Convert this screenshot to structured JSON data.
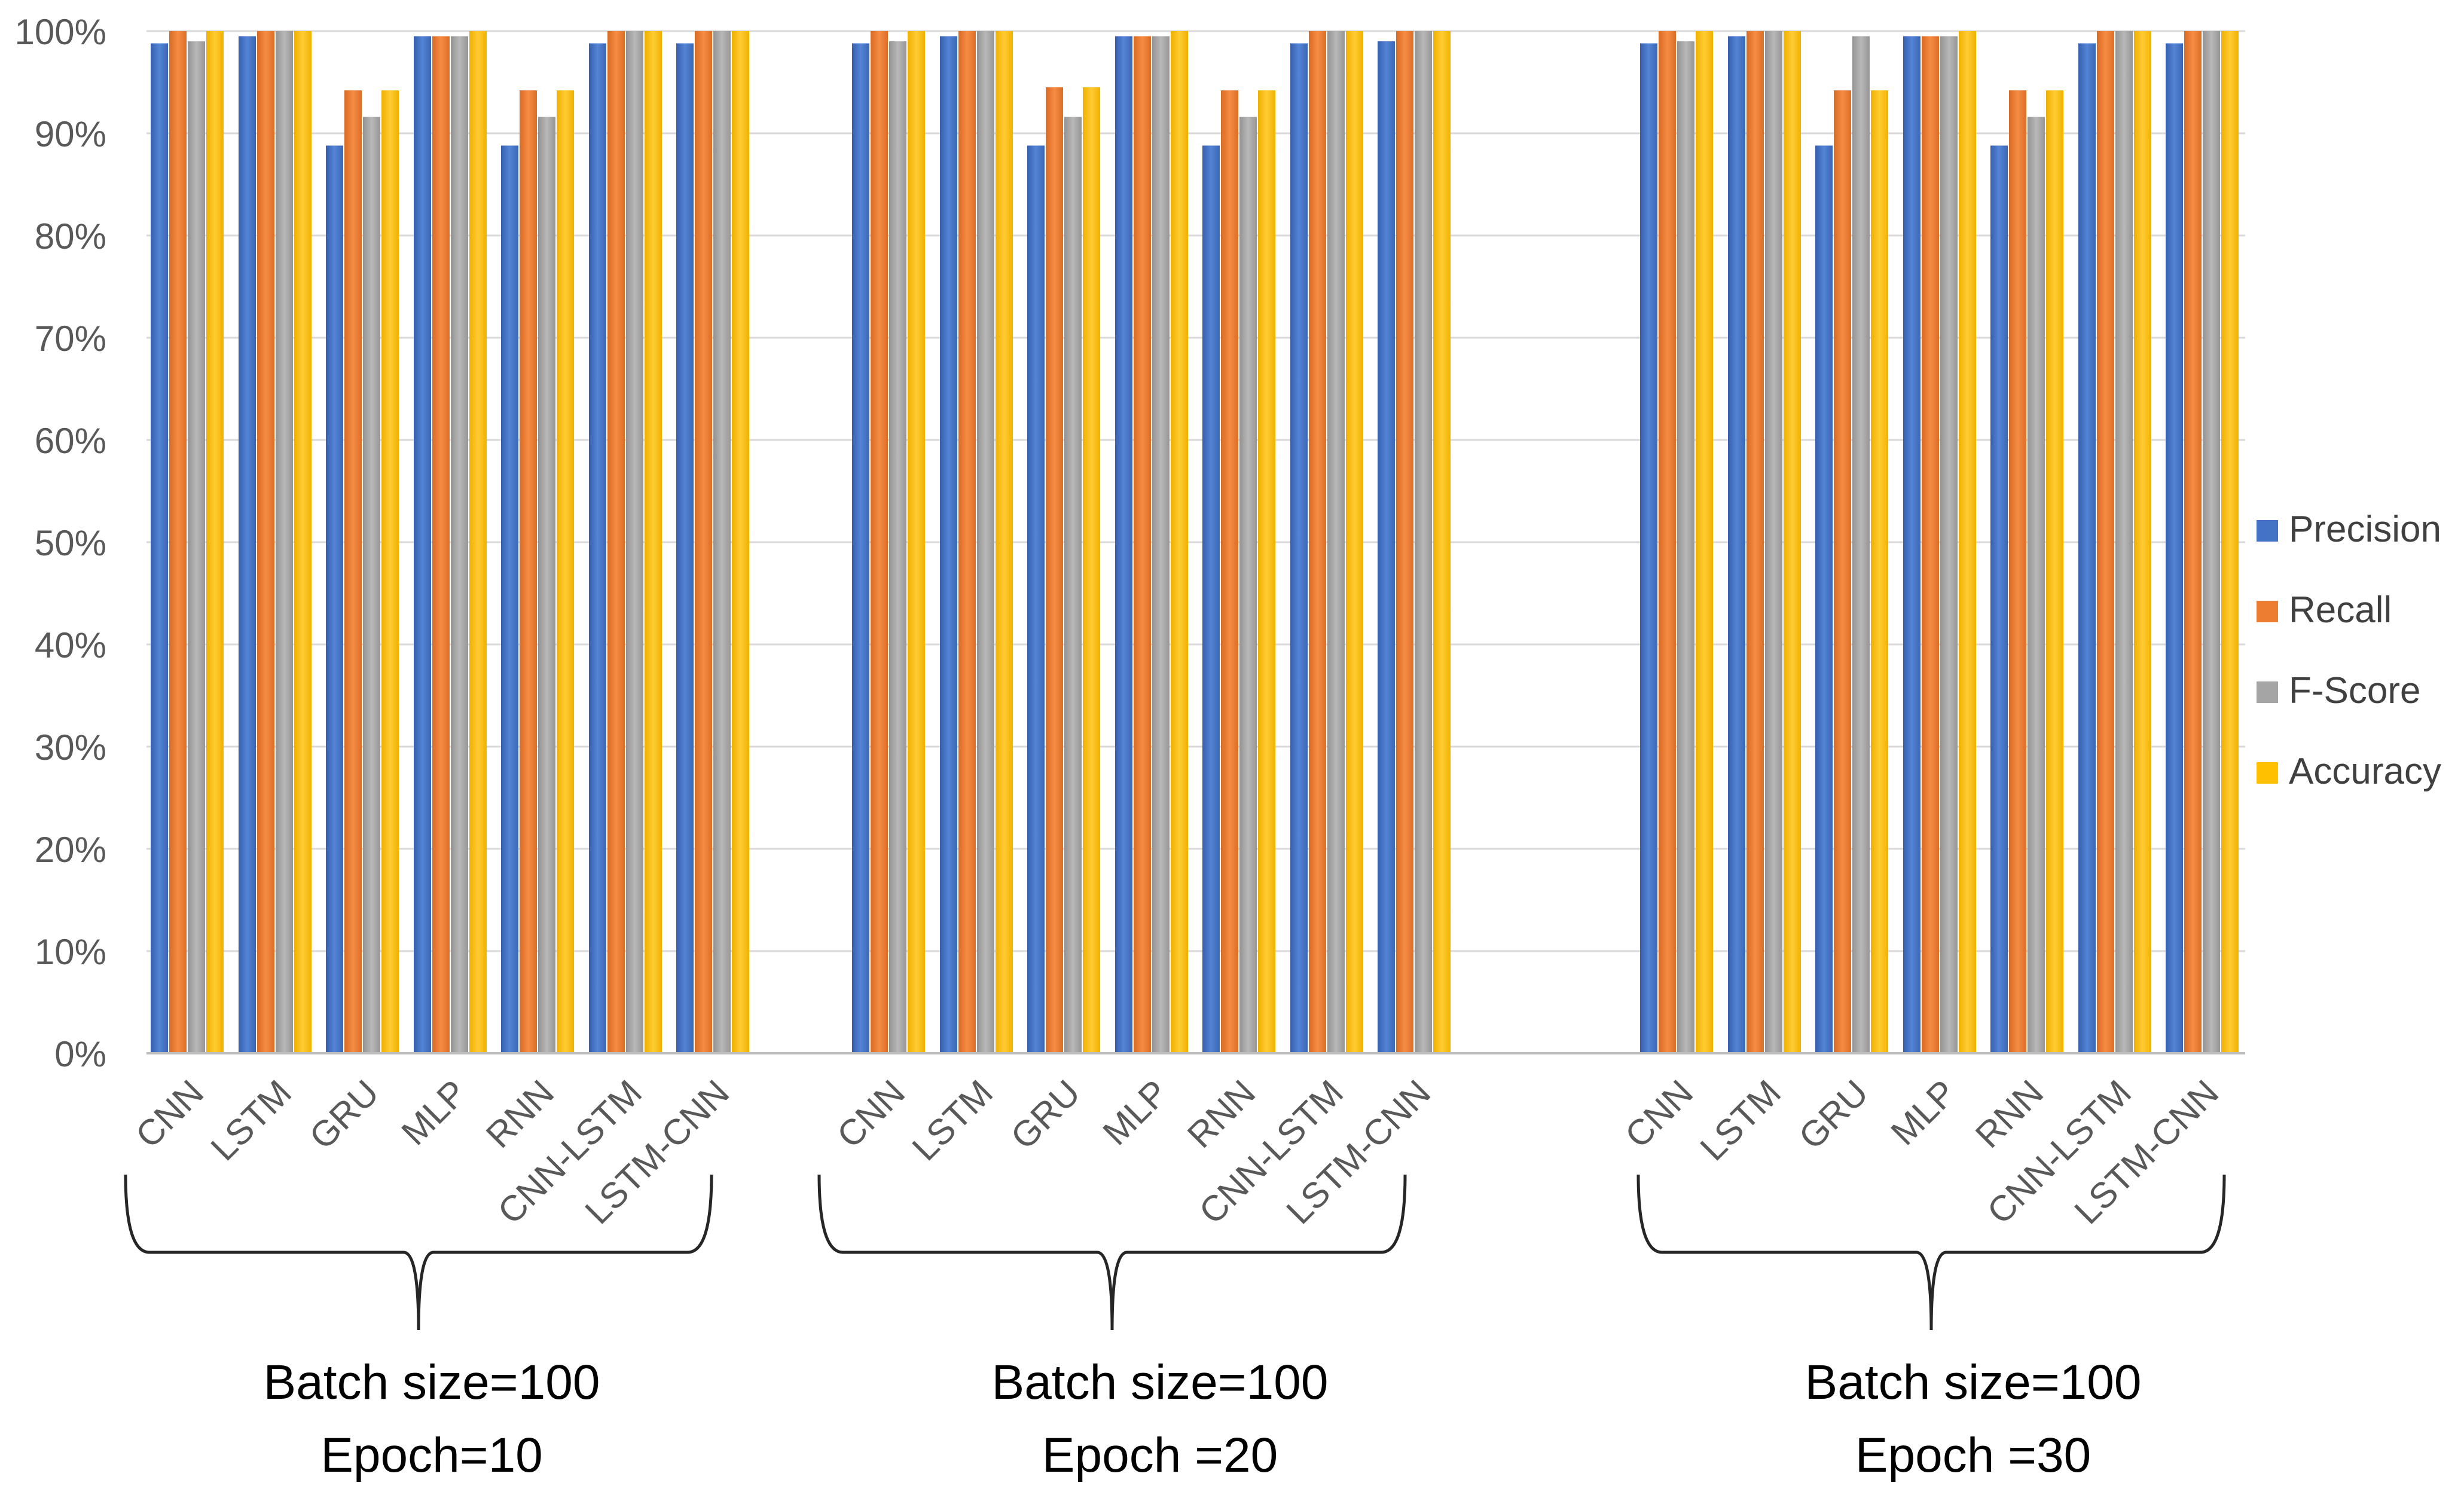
{
  "chart_data": {
    "type": "bar",
    "title": "",
    "xlabel": "",
    "ylabel": "",
    "ylim": [
      0,
      100
    ],
    "y_ticks": [
      "0%",
      "10%",
      "20%",
      "30%",
      "40%",
      "50%",
      "60%",
      "70%",
      "80%",
      "90%",
      "100%"
    ],
    "grid": true,
    "legend_position": "right",
    "series": [
      {
        "name": "Precision",
        "color": "#4472C4"
      },
      {
        "name": "Recall",
        "color": "#ED7D31"
      },
      {
        "name": "F-Score",
        "color": "#A5A5A5"
      },
      {
        "name": "Accuracy",
        "color": "#FFC000"
      }
    ],
    "groups": [
      {
        "label_line1": "Batch size=100",
        "label_line2": "Epoch=10",
        "categories": [
          "CNN",
          "LSTM",
          "GRU",
          "MLP",
          "RNN",
          "CNN-LSTM",
          "LSTM-CNN"
        ],
        "values": [
          [
            98.8,
            100,
            99.0,
            100
          ],
          [
            99.5,
            100,
            100,
            100
          ],
          [
            88.8,
            94.2,
            91.6,
            94.2
          ],
          [
            99.5,
            99.5,
            99.5,
            100
          ],
          [
            88.8,
            94.2,
            91.6,
            94.2
          ],
          [
            98.8,
            100,
            100,
            100
          ],
          [
            98.8,
            100,
            100,
            100
          ]
        ]
      },
      {
        "label_line1": "Batch size=100",
        "label_line2": "Epoch =20",
        "categories": [
          "CNN",
          "LSTM",
          "GRU",
          "MLP",
          "RNN",
          "CNN-LSTM",
          "LSTM-CNN"
        ],
        "values": [
          [
            98.8,
            100,
            99.0,
            100
          ],
          [
            99.5,
            100,
            100,
            100
          ],
          [
            88.8,
            94.5,
            91.6,
            94.5
          ],
          [
            99.5,
            99.5,
            99.5,
            100
          ],
          [
            88.8,
            94.2,
            91.6,
            94.2
          ],
          [
            98.8,
            100,
            100,
            100
          ],
          [
            99.0,
            100,
            100,
            100
          ]
        ]
      },
      {
        "label_line1": "Batch size=100",
        "label_line2": "Epoch =30",
        "categories": [
          "CNN",
          "LSTM",
          "GRU",
          "MLP",
          "RNN",
          "CNN-LSTM",
          "LSTM-CNN"
        ],
        "values": [
          [
            98.8,
            100,
            99.0,
            100
          ],
          [
            99.5,
            100,
            100,
            100
          ],
          [
            88.8,
            94.2,
            99.5,
            94.2
          ],
          [
            99.5,
            99.5,
            99.5,
            100
          ],
          [
            88.8,
            94.2,
            91.6,
            94.2
          ],
          [
            98.8,
            100,
            100,
            100
          ],
          [
            98.8,
            100,
            100,
            100
          ]
        ]
      }
    ]
  }
}
